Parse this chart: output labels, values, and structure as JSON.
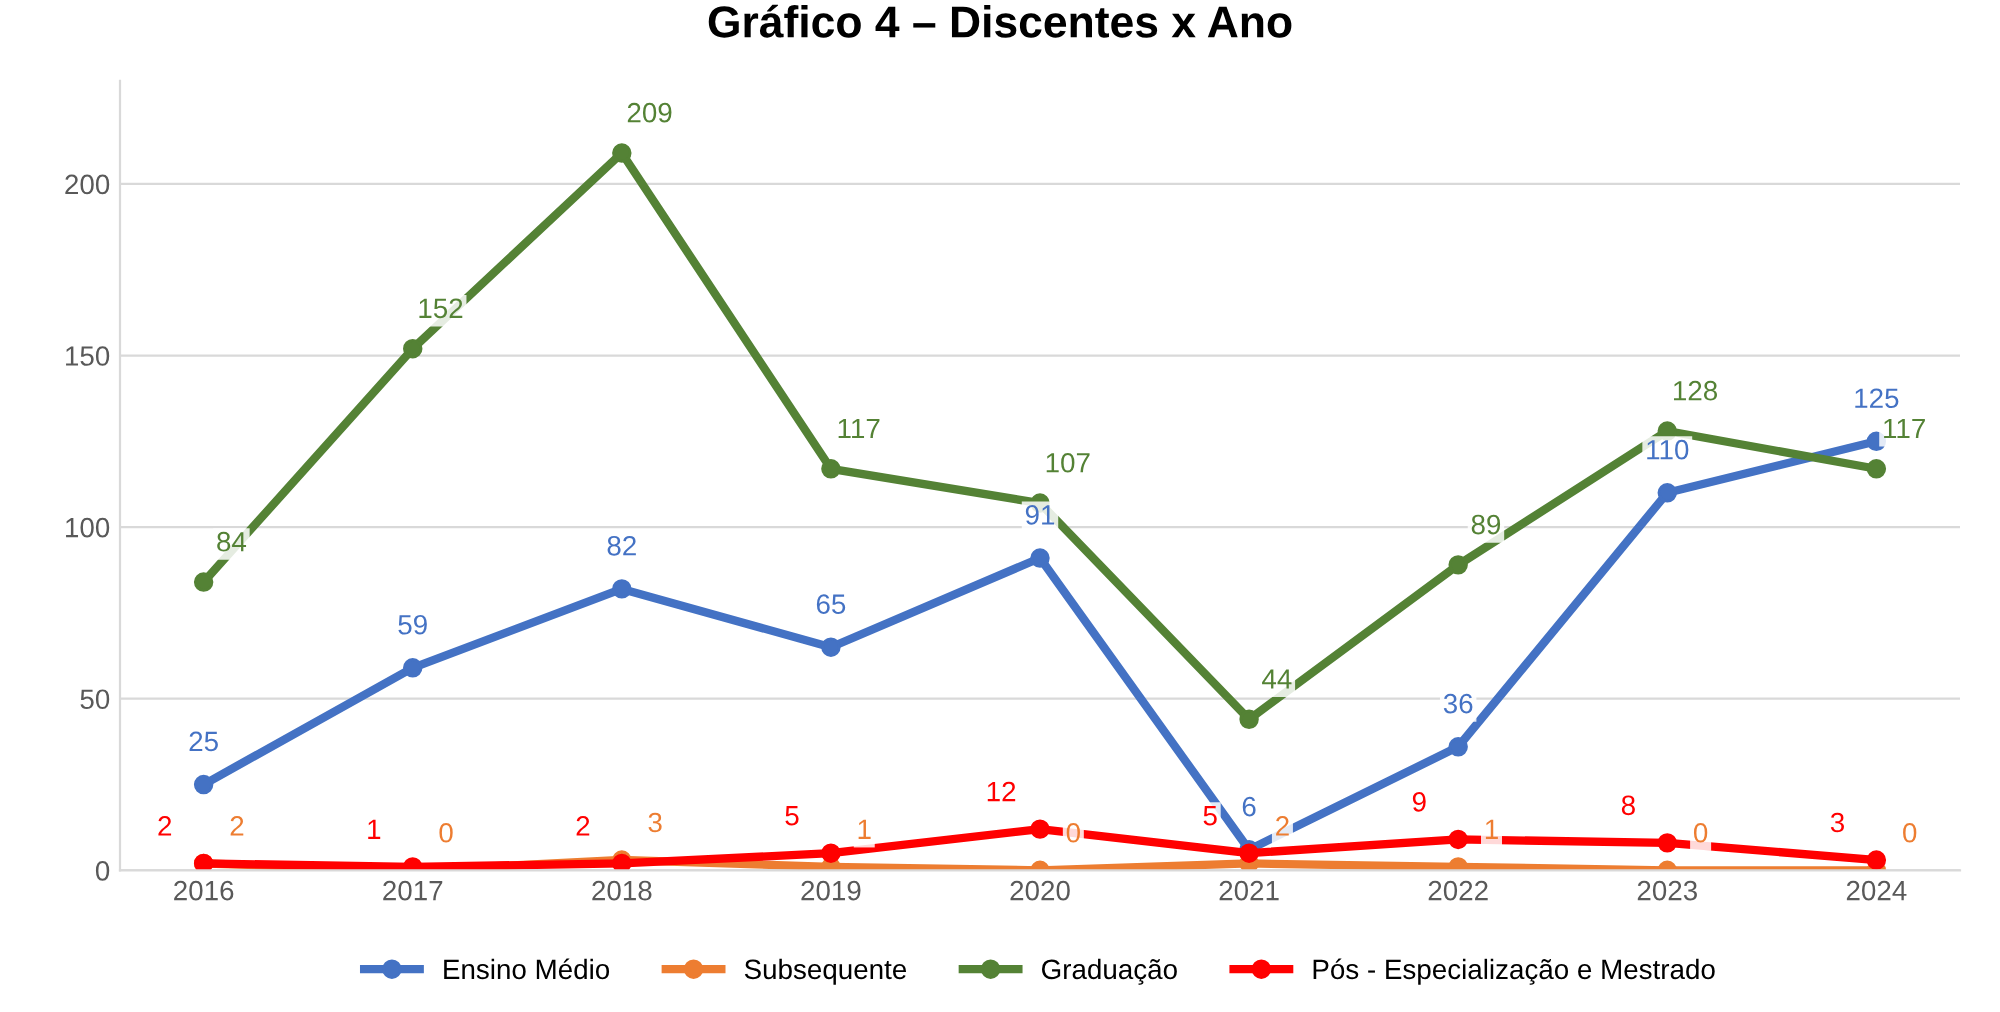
{
  "chart_data": {
    "type": "line",
    "title": "Gráfico 4 – Discentes x Ano",
    "categories": [
      "2016",
      "2017",
      "2018",
      "2019",
      "2020",
      "2021",
      "2022",
      "2023",
      "2024"
    ],
    "series": [
      {
        "name": "Ensino Médio",
        "color": "#4472c4",
        "values": [
          25,
          59,
          82,
          65,
          91,
          6,
          36,
          110,
          125
        ]
      },
      {
        "name": "Subsequente",
        "color": "#ed7d31",
        "values": [
          2,
          0,
          3,
          1,
          0,
          2,
          1,
          0,
          0
        ]
      },
      {
        "name": "Graduação",
        "color": "#548235",
        "values": [
          84,
          152,
          209,
          117,
          107,
          44,
          89,
          128,
          117
        ]
      },
      {
        "name": "Pós - Especialização e Mestrado",
        "color": "#ff0000",
        "values": [
          2,
          1,
          2,
          5,
          12,
          5,
          9,
          8,
          3
        ]
      }
    ],
    "ylim": [
      0,
      230
    ],
    "yticks": [
      0,
      50,
      100,
      150,
      200
    ],
    "grid": "y",
    "legend": "bottom",
    "marker": "circle",
    "line_style": "solid",
    "data_labels": true
  }
}
